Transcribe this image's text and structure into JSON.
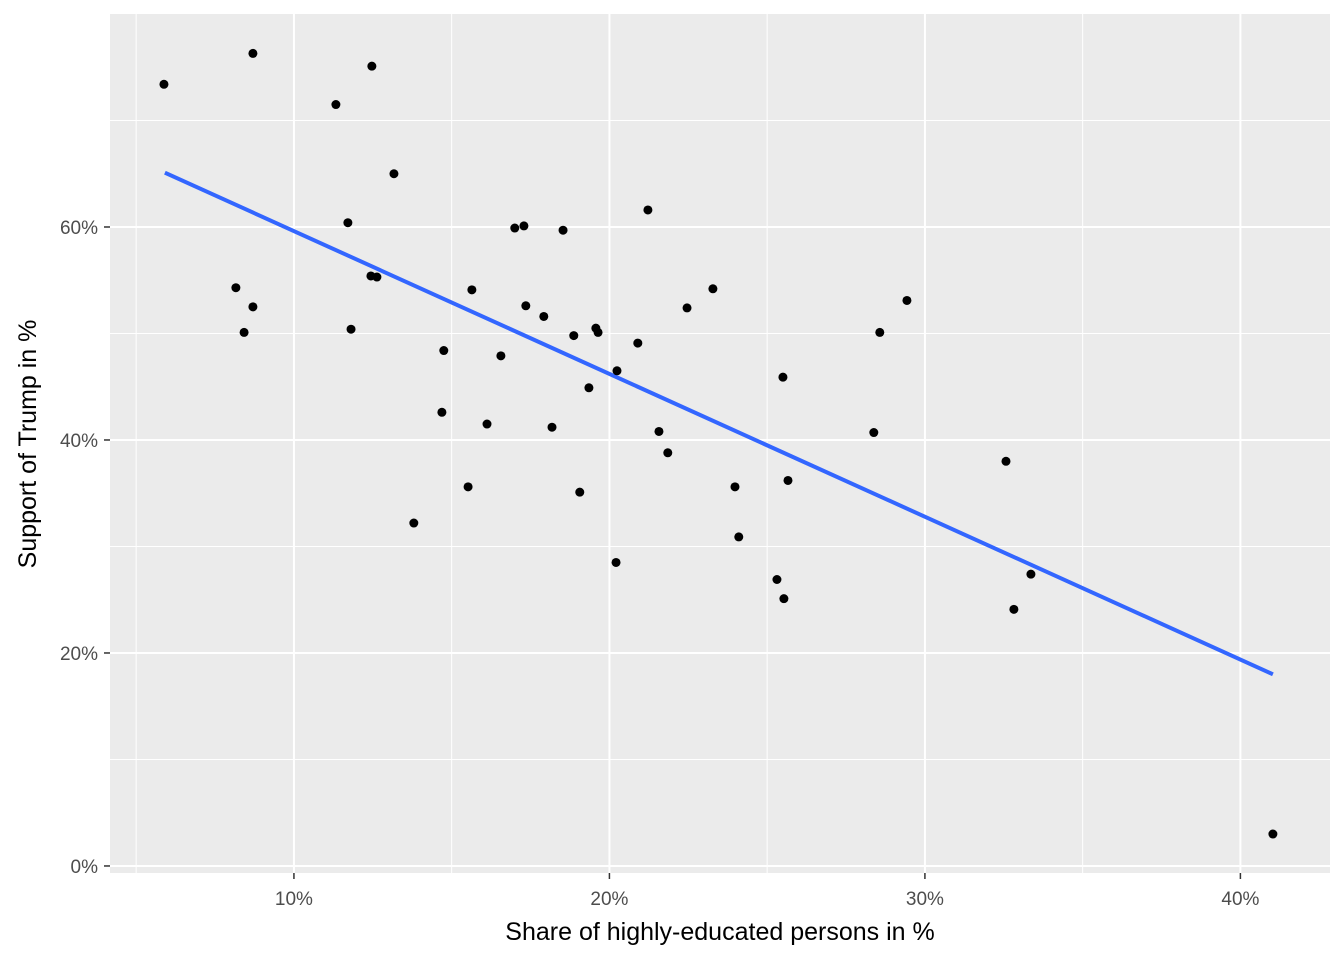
{
  "chart_data": {
    "type": "scatter",
    "title": "",
    "xlabel": "Share of highly-educated persons in %",
    "ylabel": "Support of Trump in %",
    "xlim": [
      4.17,
      42.84
    ],
    "ylim": [
      -0.66,
      80.0
    ],
    "xticks": [
      10,
      20,
      30,
      40
    ],
    "xtick_labels": [
      "10%",
      "20%",
      "30%",
      "40%"
    ],
    "xminor": [
      5,
      15,
      25,
      35
    ],
    "yticks": [
      0,
      20,
      40,
      60
    ],
    "ytick_labels": [
      "0%",
      "20%",
      "40%",
      "60%"
    ],
    "yminor": [
      10,
      30,
      50,
      70
    ],
    "grid": true,
    "colors": {
      "panel": "#EBEBEB",
      "grid": "#FFFFFF",
      "point": "#000000",
      "trend": "#3366FF"
    },
    "points": [
      [
        5.88,
        73.4
      ],
      [
        8.7,
        76.3
      ],
      [
        12.47,
        75.1
      ],
      [
        11.33,
        71.5
      ],
      [
        13.17,
        65.0
      ],
      [
        11.71,
        60.4
      ],
      [
        8.16,
        54.3
      ],
      [
        8.7,
        52.5
      ],
      [
        8.42,
        50.1
      ],
      [
        12.44,
        55.4
      ],
      [
        12.63,
        55.3
      ],
      [
        11.81,
        50.4
      ],
      [
        14.75,
        48.4
      ],
      [
        14.69,
        42.6
      ],
      [
        15.64,
        54.1
      ],
      [
        13.8,
        32.2
      ],
      [
        16.12,
        41.5
      ],
      [
        15.52,
        35.6
      ],
      [
        16.56,
        47.9
      ],
      [
        17.0,
        59.9
      ],
      [
        17.29,
        60.1
      ],
      [
        17.35,
        52.6
      ],
      [
        17.92,
        51.6
      ],
      [
        18.53,
        59.7
      ],
      [
        18.87,
        49.8
      ],
      [
        18.18,
        41.2
      ],
      [
        19.06,
        35.1
      ],
      [
        19.57,
        50.5
      ],
      [
        19.64,
        50.1
      ],
      [
        19.35,
        44.9
      ],
      [
        20.24,
        46.5
      ],
      [
        20.21,
        28.5
      ],
      [
        20.9,
        49.1
      ],
      [
        21.22,
        61.6
      ],
      [
        21.57,
        40.8
      ],
      [
        21.85,
        38.8
      ],
      [
        22.46,
        52.4
      ],
      [
        23.28,
        54.2
      ],
      [
        23.98,
        35.6
      ],
      [
        24.1,
        30.9
      ],
      [
        25.5,
        45.9
      ],
      [
        25.66,
        36.2
      ],
      [
        25.31,
        26.9
      ],
      [
        25.53,
        25.1
      ],
      [
        28.57,
        50.1
      ],
      [
        29.43,
        53.1
      ],
      [
        28.38,
        40.7
      ],
      [
        32.57,
        38.0
      ],
      [
        32.82,
        24.1
      ],
      [
        33.36,
        27.4
      ],
      [
        41.03,
        3.0
      ]
    ],
    "trend_line": {
      "method": "linear",
      "x": [
        5.91,
        41.03
      ],
      "y": [
        65.1,
        18.0
      ]
    }
  }
}
